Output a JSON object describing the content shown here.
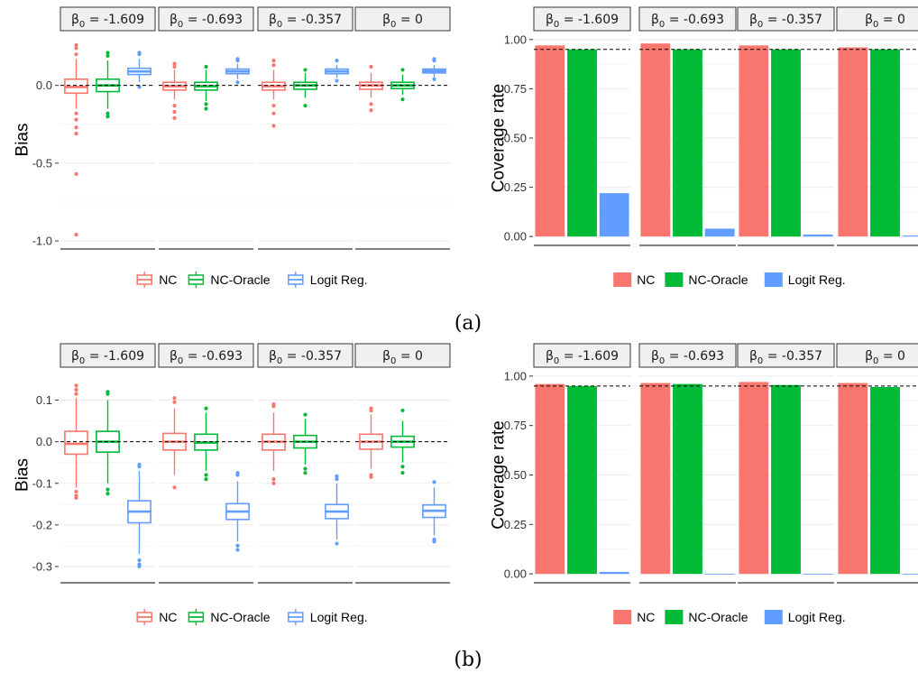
{
  "panel_labels": [
    "(a)",
    "(b)"
  ],
  "colors": {
    "NC": "#F8766D",
    "NC-Oracle": "#00BA38",
    "Logit Reg.": "#619CFF"
  },
  "legend": [
    "NC",
    "NC-Oracle",
    "Logit Reg."
  ],
  "chart_data": [
    {
      "id": "a-bias",
      "type": "boxplot",
      "facets": [
        "-1.609",
        "-0.693",
        "-0.357",
        "0"
      ],
      "facet_prefix": "β0",
      "ylabel": "Bias",
      "ylim": [
        -1.0,
        0.3
      ],
      "yticks": [
        -1.0,
        -0.5,
        0.0
      ],
      "ytick_labels": [
        "-1.0",
        "-0.5",
        "0.0"
      ],
      "reference_line": 0,
      "series": [
        {
          "name": "NC",
          "boxes": [
            {
              "q1": -0.05,
              "median": -0.01,
              "q3": 0.04,
              "lw": -0.15,
              "uw": 0.17,
              "outliers": [
                0.26,
                0.24,
                0.2,
                -0.18,
                -0.22,
                -0.27,
                -0.31,
                -0.57,
                -0.96
              ]
            },
            {
              "q1": -0.03,
              "median": -0.005,
              "q3": 0.02,
              "lw": -0.09,
              "uw": 0.1,
              "outliers": [
                0.14,
                0.12,
                -0.13,
                -0.17,
                -0.21
              ]
            },
            {
              "q1": -0.03,
              "median": -0.005,
              "q3": 0.02,
              "lw": -0.09,
              "uw": 0.1,
              "outliers": [
                0.16,
                0.13,
                -0.13,
                -0.18,
                -0.26
              ]
            },
            {
              "q1": -0.025,
              "median": 0.0,
              "q3": 0.02,
              "lw": -0.08,
              "uw": 0.08,
              "outliers": [
                0.12,
                -0.12,
                -0.16
              ]
            }
          ]
        },
        {
          "name": "NC-Oracle",
          "boxes": [
            {
              "q1": -0.04,
              "median": 0.0,
              "q3": 0.04,
              "lw": -0.15,
              "uw": 0.16,
              "outliers": [
                0.21,
                0.19,
                -0.18,
                -0.2
              ]
            },
            {
              "q1": -0.03,
              "median": -0.005,
              "q3": 0.02,
              "lw": -0.1,
              "uw": 0.1,
              "outliers": [
                0.12,
                -0.12,
                -0.15
              ]
            },
            {
              "q1": -0.025,
              "median": 0.0,
              "q3": 0.02,
              "lw": -0.08,
              "uw": 0.08,
              "outliers": [
                0.1,
                -0.13
              ]
            },
            {
              "q1": -0.02,
              "median": 0.0,
              "q3": 0.02,
              "lw": -0.06,
              "uw": 0.07,
              "outliers": [
                0.1,
                -0.09
              ]
            }
          ]
        },
        {
          "name": "Logit Reg.",
          "boxes": [
            {
              "q1": 0.07,
              "median": 0.09,
              "q3": 0.11,
              "lw": 0.02,
              "uw": 0.17,
              "outliers": [
                0.21,
                0.2,
                -0.01
              ]
            },
            {
              "q1": 0.075,
              "median": 0.09,
              "q3": 0.105,
              "lw": 0.04,
              "uw": 0.14,
              "outliers": [
                0.17,
                0.16,
                0.02
              ]
            },
            {
              "q1": 0.075,
              "median": 0.09,
              "q3": 0.105,
              "lw": 0.05,
              "uw": 0.13,
              "outliers": [
                0.16,
                0.03
              ]
            },
            {
              "q1": 0.08,
              "median": 0.092,
              "q3": 0.105,
              "lw": 0.055,
              "uw": 0.13,
              "outliers": [
                0.17,
                0.16,
                0.04
              ]
            }
          ]
        }
      ]
    },
    {
      "id": "a-coverage",
      "type": "bar",
      "facets": [
        "-1.609",
        "-0.693",
        "-0.357",
        "0"
      ],
      "facet_prefix": "β0",
      "ylabel": "Coverage rate",
      "ylim": [
        0,
        1.0
      ],
      "yticks": [
        0,
        0.25,
        0.5,
        0.75,
        1.0
      ],
      "ytick_labels": [
        "0.00",
        "0.25",
        "0.50",
        "0.75",
        "1.00"
      ],
      "reference_line": 0.95,
      "series": [
        {
          "name": "NC",
          "values": [
            0.97,
            0.98,
            0.97,
            0.96
          ]
        },
        {
          "name": "NC-Oracle",
          "values": [
            0.95,
            0.95,
            0.95,
            0.95
          ]
        },
        {
          "name": "Logit Reg.",
          "values": [
            0.22,
            0.04,
            0.01,
            0.005
          ]
        }
      ]
    },
    {
      "id": "b-bias",
      "type": "boxplot",
      "facets": [
        "-1.609",
        "-0.693",
        "-0.357",
        "0"
      ],
      "facet_prefix": "β0",
      "ylabel": "Bias",
      "ylim": [
        -0.32,
        0.16
      ],
      "yticks": [
        -0.3,
        -0.2,
        -0.1,
        0.0,
        0.1
      ],
      "ytick_labels": [
        "-0.3",
        "-0.2",
        "-0.1",
        "0.0",
        "0.1"
      ],
      "reference_line": 0,
      "series": [
        {
          "name": "NC",
          "boxes": [
            {
              "q1": -0.03,
              "median": -0.005,
              "q3": 0.025,
              "lw": -0.11,
              "uw": 0.105,
              "outliers": [
                0.135,
                0.125,
                0.115,
                -0.12,
                -0.13,
                -0.135
              ]
            },
            {
              "q1": -0.02,
              "median": 0.0,
              "q3": 0.02,
              "lw": -0.08,
              "uw": 0.08,
              "outliers": [
                0.105,
                0.095,
                -0.11
              ]
            },
            {
              "q1": -0.02,
              "median": 0.0,
              "q3": 0.018,
              "lw": -0.07,
              "uw": 0.07,
              "outliers": [
                0.09,
                0.085,
                -0.09,
                -0.1
              ]
            },
            {
              "q1": -0.018,
              "median": 0.0,
              "q3": 0.018,
              "lw": -0.065,
              "uw": 0.065,
              "outliers": [
                0.08,
                0.075,
                -0.08,
                -0.085
              ]
            }
          ]
        },
        {
          "name": "NC-Oracle",
          "boxes": [
            {
              "q1": -0.025,
              "median": 0.0,
              "q3": 0.025,
              "lw": -0.1,
              "uw": 0.1,
              "outliers": [
                0.12,
                0.115,
                -0.115,
                -0.125
              ]
            },
            {
              "q1": -0.02,
              "median": -0.002,
              "q3": 0.018,
              "lw": -0.07,
              "uw": 0.07,
              "outliers": [
                0.08,
                -0.08,
                -0.09
              ]
            },
            {
              "q1": -0.015,
              "median": 0.0,
              "q3": 0.015,
              "lw": -0.055,
              "uw": 0.055,
              "outliers": [
                0.065,
                -0.065,
                -0.075
              ]
            },
            {
              "q1": -0.013,
              "median": 0.0,
              "q3": 0.013,
              "lw": -0.05,
              "uw": 0.05,
              "outliers": [
                0.075,
                -0.06,
                -0.075
              ]
            }
          ]
        },
        {
          "name": "Logit Reg.",
          "boxes": [
            {
              "q1": -0.195,
              "median": -0.168,
              "q3": -0.142,
              "lw": -0.27,
              "uw": -0.07,
              "outliers": [
                -0.055,
                -0.06,
                -0.285,
                -0.295,
                -0.3
              ]
            },
            {
              "q1": -0.187,
              "median": -0.168,
              "q3": -0.149,
              "lw": -0.24,
              "uw": -0.095,
              "outliers": [
                -0.075,
                -0.08,
                -0.25,
                -0.26
              ]
            },
            {
              "q1": -0.185,
              "median": -0.168,
              "q3": -0.151,
              "lw": -0.235,
              "uw": -0.1,
              "outliers": [
                -0.083,
                -0.09,
                -0.245
              ]
            },
            {
              "q1": -0.182,
              "median": -0.166,
              "q3": -0.152,
              "lw": -0.225,
              "uw": -0.11,
              "outliers": [
                -0.097,
                -0.235,
                -0.24
              ]
            }
          ]
        }
      ]
    },
    {
      "id": "b-coverage",
      "type": "bar",
      "facets": [
        "-1.609",
        "-0.693",
        "-0.357",
        "0"
      ],
      "facet_prefix": "β0",
      "ylabel": "Coverage rate",
      "ylim": [
        0,
        1.0
      ],
      "yticks": [
        0,
        0.25,
        0.5,
        0.75,
        1.0
      ],
      "ytick_labels": [
        "0.00",
        "0.25",
        "0.50",
        "0.75",
        "1.00"
      ],
      "reference_line": 0.95,
      "series": [
        {
          "name": "NC",
          "values": [
            0.96,
            0.965,
            0.97,
            0.965
          ]
        },
        {
          "name": "NC-Oracle",
          "values": [
            0.95,
            0.96,
            0.955,
            0.945
          ]
        },
        {
          "name": "Logit Reg.",
          "values": [
            0.01,
            0.0,
            0.0,
            0.0
          ]
        }
      ]
    }
  ]
}
